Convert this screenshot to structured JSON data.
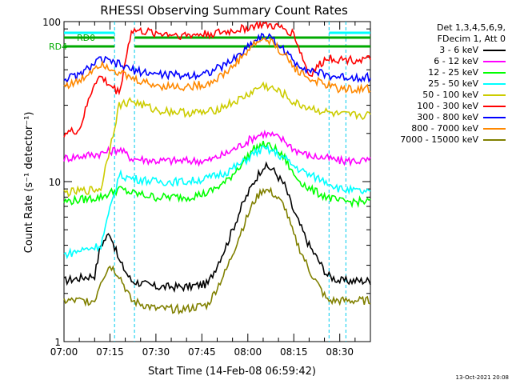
{
  "chart_data": {
    "type": "line",
    "title": "RHESSI Observing Summary Count Rates",
    "xlabel": "Start Time (14-Feb-08 06:59:42)",
    "ylabel": "Count Rate (s⁻¹ detector⁻¹)",
    "x_ticks": [
      "07:00",
      "07:15",
      "07:30",
      "07:45",
      "08:00",
      "08:15",
      "08:30"
    ],
    "y_ticks": [
      "1",
      "10",
      "100"
    ],
    "y_scale": "log",
    "ylim": [
      1,
      100
    ],
    "xlim_minutes": [
      0,
      100
    ],
    "legend_header": [
      "Det 1,3,4,5,6,9,",
      "FDecim 1, Att 0"
    ],
    "series": [
      {
        "name": "3 - 6 keV",
        "color": "#000000",
        "x": [
          0,
          10,
          12,
          15,
          18,
          22,
          30,
          40,
          47,
          53,
          58,
          62,
          65,
          68,
          72,
          75,
          80,
          86,
          90,
          95,
          100
        ],
        "y": [
          2.4,
          2.6,
          4.0,
          4.8,
          3.2,
          2.4,
          2.2,
          2.2,
          2.3,
          4.0,
          7.0,
          10.0,
          12.5,
          12.0,
          9.5,
          6.5,
          4.0,
          2.6,
          2.4,
          2.4,
          2.4
        ]
      },
      {
        "name": "6 - 12 keV",
        "color": "#ff00ff",
        "x": [
          0,
          12,
          18,
          22,
          30,
          40,
          47,
          53,
          58,
          62,
          65,
          68,
          72,
          75,
          80,
          86,
          90,
          100
        ],
        "y": [
          14,
          15,
          16,
          14,
          13.5,
          13.5,
          13.5,
          15,
          17,
          19,
          20,
          19.5,
          18,
          16,
          14.5,
          14,
          13.5,
          13.5
        ]
      },
      {
        "name": "12 - 25 keV",
        "color": "#00ff00",
        "x": [
          0,
          12,
          18,
          22,
          30,
          40,
          47,
          53,
          58,
          62,
          65,
          68,
          72,
          75,
          80,
          86,
          90,
          100
        ],
        "y": [
          7.5,
          8.0,
          9.0,
          8.5,
          8.0,
          8.0,
          8.5,
          10,
          13,
          16,
          17,
          16.5,
          14,
          11,
          9,
          8.0,
          7.5,
          7.5
        ]
      },
      {
        "name": "25 - 50 keV",
        "color": "#00ffff",
        "x": [
          0,
          12,
          18,
          22,
          30,
          40,
          47,
          53,
          58,
          62,
          65,
          68,
          72,
          75,
          80,
          86,
          90,
          100
        ],
        "y": [
          3.5,
          4.0,
          11,
          10.5,
          10,
          10,
          10.5,
          11.5,
          13,
          15,
          16,
          15.5,
          14,
          12.5,
          11,
          10,
          9,
          8.5
        ]
      },
      {
        "name": "50 - 100 keV",
        "color": "#cccc00",
        "x": [
          0,
          12,
          18,
          22,
          30,
          40,
          47,
          53,
          58,
          62,
          65,
          68,
          72,
          75,
          80,
          86,
          90,
          100
        ],
        "y": [
          8.5,
          9.0,
          30,
          32,
          28,
          27,
          27,
          30,
          33,
          37,
          40,
          38,
          35,
          31,
          29,
          27,
          26,
          26
        ]
      },
      {
        "name": "100 - 300 keV",
        "color": "#ff0000",
        "x": [
          0,
          5,
          10,
          12,
          15,
          18,
          22,
          30,
          40,
          47,
          53,
          58,
          62,
          65,
          68,
          72,
          75,
          80,
          86,
          90,
          100
        ],
        "y": [
          20,
          21,
          42,
          45,
          40,
          36,
          88,
          85,
          82,
          84,
          86,
          90,
          94,
          96,
          94,
          90,
          84,
          46,
          60,
          58,
          58
        ]
      },
      {
        "name": "300 - 800 keV",
        "color": "#0000ff",
        "x": [
          0,
          5,
          10,
          12,
          15,
          18,
          22,
          30,
          40,
          47,
          53,
          58,
          62,
          65,
          68,
          72,
          75,
          80,
          86,
          90,
          100
        ],
        "y": [
          44,
          46,
          55,
          58,
          56,
          54,
          50,
          47,
          46,
          48,
          54,
          64,
          76,
          82,
          78,
          66,
          56,
          50,
          46,
          45,
          45
        ]
      },
      {
        "name": "800 - 7000 keV",
        "color": "#ff8800",
        "x": [
          0,
          5,
          10,
          12,
          15,
          18,
          22,
          30,
          40,
          47,
          53,
          58,
          62,
          65,
          68,
          72,
          75,
          80,
          86,
          90,
          100
        ],
        "y": [
          40,
          42,
          52,
          55,
          52,
          48,
          44,
          40,
          39,
          41,
          48,
          60,
          72,
          78,
          74,
          62,
          52,
          44,
          40,
          38,
          38
        ]
      },
      {
        "name": "7000 - 15000 keV",
        "color": "#808000",
        "x": [
          0,
          10,
          12,
          15,
          18,
          22,
          30,
          40,
          47,
          53,
          58,
          62,
          65,
          68,
          72,
          75,
          80,
          86,
          90,
          95,
          100
        ],
        "y": [
          1.8,
          1.8,
          2.4,
          3.0,
          2.6,
          1.8,
          1.6,
          1.6,
          1.7,
          2.8,
          5.0,
          7.5,
          9.0,
          8.5,
          7.0,
          4.6,
          2.8,
          1.8,
          1.8,
          1.8,
          1.8
        ]
      }
    ],
    "annotations": [
      {
        "text": "RD0",
        "color": "#00aa00"
      },
      {
        "text": "RD4",
        "color": "#00aa00"
      }
    ],
    "grid": false,
    "legend_placement": "top-right-outside"
  },
  "footnote": "13-Oct-2021 20:08"
}
